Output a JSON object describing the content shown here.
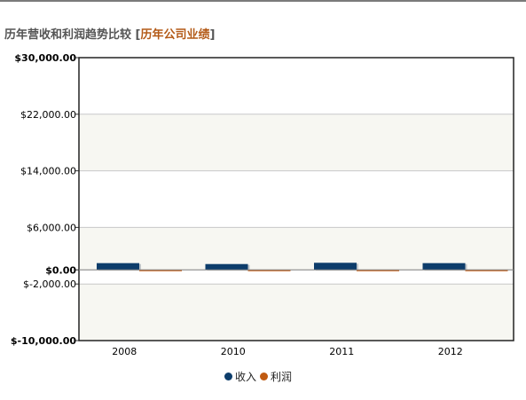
{
  "header": {
    "title": "历年营收和利润趋势比较",
    "bracket_open": "[",
    "link": "历年公司业绩",
    "bracket_close": "]"
  },
  "chart_data": {
    "type": "bar",
    "title": "",
    "xlabel": "",
    "ylabel": "",
    "categories": [
      "2008",
      "2010",
      "2011",
      "2012"
    ],
    "series": [
      {
        "name": "收入",
        "color": "#0d3d6b",
        "values": [
          950,
          820,
          1000,
          950
        ]
      },
      {
        "name": "利润",
        "color": "#c05a11",
        "values": [
          -150,
          -80,
          -120,
          -100
        ]
      }
    ],
    "ylim": [
      -10000,
      30000
    ],
    "y_ticks": [
      {
        "value": 30000,
        "label": "$30,000.00",
        "bold": true
      },
      {
        "value": 22000,
        "label": "$22,000.00",
        "bold": false
      },
      {
        "value": 14000,
        "label": "$14,000.00",
        "bold": false
      },
      {
        "value": 6000,
        "label": "$6,000.00",
        "bold": false
      },
      {
        "value": 0,
        "label": "$0.00",
        "bold": true
      },
      {
        "value": -2000,
        "label": "$-2,000.00",
        "bold": false
      },
      {
        "value": -10000,
        "label": "$-10,000.00",
        "bold": true
      }
    ],
    "grid": true,
    "legend_position": "bottom-center"
  }
}
